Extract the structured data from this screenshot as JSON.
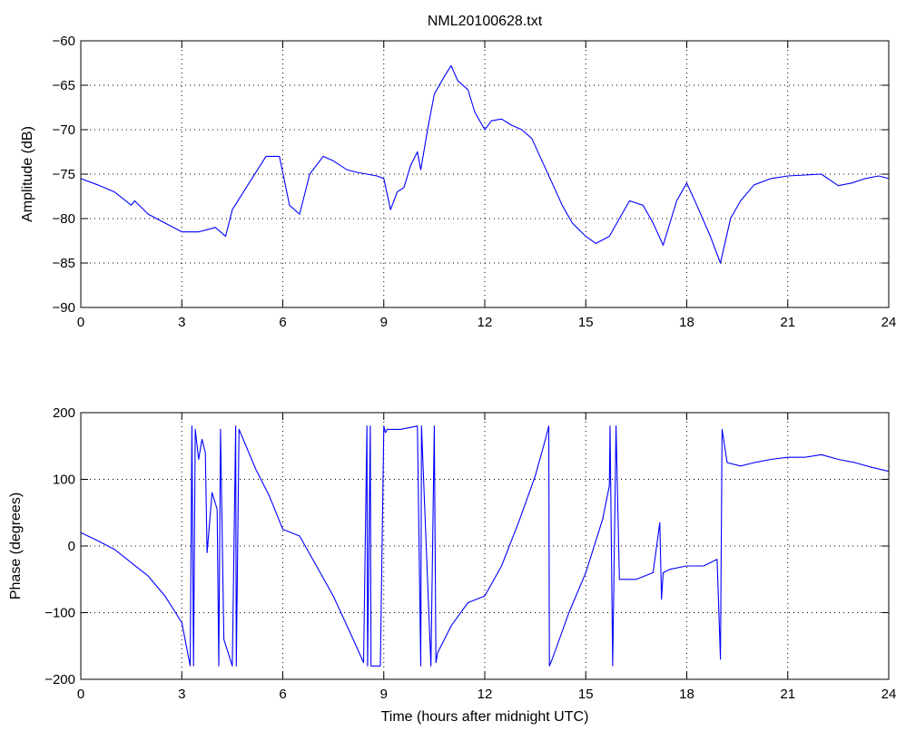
{
  "figure": {
    "title": "NML20100628.txt"
  },
  "chart_data": [
    {
      "type": "line",
      "title": "NML20100628.txt",
      "xlabel": "",
      "ylabel": "Amplitude (dB)",
      "xlim": [
        0,
        24
      ],
      "ylim": [
        -90,
        -60
      ],
      "xticks": [
        0,
        3,
        6,
        9,
        12,
        15,
        18,
        21,
        24
      ],
      "yticks": [
        -90,
        -85,
        -80,
        -75,
        -70,
        -65,
        -60
      ],
      "grid": true,
      "color": "#0000ff",
      "series": [
        {
          "x": [
            0,
            0.5,
            1.0,
            1.5,
            1.6,
            2.0,
            2.5,
            3.0,
            3.5,
            4.0,
            4.3,
            4.5,
            5.0,
            5.5,
            5.9,
            6.2,
            6.5,
            6.8,
            7.2,
            7.5,
            7.9,
            8.2,
            8.5,
            8.8,
            9.0,
            9.2,
            9.4,
            9.6,
            9.8,
            10.0,
            10.1,
            10.3,
            10.5,
            10.8,
            11.0,
            11.2,
            11.5,
            11.7,
            12.0,
            12.2,
            12.5,
            12.8,
            13.1,
            13.4,
            13.7,
            14.0,
            14.3,
            14.6,
            15.0,
            15.3,
            15.7,
            16.0,
            16.3,
            16.7,
            17.0,
            17.3,
            17.7,
            18.0,
            18.3,
            18.7,
            19.0,
            19.3,
            19.6,
            20.0,
            20.5,
            21.0,
            21.5,
            22.0,
            22.5,
            22.9,
            23.3,
            23.7,
            24.0
          ],
          "y": [
            -75.5,
            -76.2,
            -77.0,
            -78.5,
            -78.0,
            -79.5,
            -80.5,
            -81.5,
            -81.5,
            -81.0,
            -82.0,
            -79.0,
            -76.0,
            -73.0,
            -73.0,
            -78.5,
            -79.5,
            -75.0,
            -73.0,
            -73.5,
            -74.5,
            -74.8,
            -75.0,
            -75.2,
            -75.5,
            -79.0,
            -77.0,
            -76.5,
            -74.0,
            -72.5,
            -74.5,
            -70.0,
            -66.0,
            -64.0,
            -62.8,
            -64.5,
            -65.5,
            -68.0,
            -70.0,
            -69.0,
            -68.8,
            -69.5,
            -70.0,
            -71.0,
            -73.5,
            -76.0,
            -78.5,
            -80.5,
            -82.0,
            -82.8,
            -82.0,
            -80.0,
            -78.0,
            -78.5,
            -80.5,
            -83.0,
            -78.0,
            -76.0,
            -78.5,
            -82.0,
            -85.0,
            -80.0,
            -78.0,
            -76.2,
            -75.5,
            -75.2,
            -75.1,
            -75.0,
            -76.3,
            -76.0,
            -75.5,
            -75.2,
            -75.5
          ]
        }
      ]
    },
    {
      "type": "line",
      "title": "",
      "xlabel": "Time (hours after midnight UTC)",
      "ylabel": "Phase (degrees)",
      "xlim": [
        0,
        24
      ],
      "ylim": [
        -200,
        200
      ],
      "xticks": [
        0,
        3,
        6,
        9,
        12,
        15,
        18,
        21,
        24
      ],
      "yticks": [
        -200,
        -100,
        0,
        100,
        200
      ],
      "grid": true,
      "color": "#0000ff",
      "series": [
        {
          "x": [
            0,
            0.5,
            1.0,
            1.5,
            2.0,
            2.5,
            3.0,
            3.25,
            3.3,
            3.35,
            3.4,
            3.5,
            3.6,
            3.7,
            3.75,
            3.9,
            4.05,
            4.1,
            4.15,
            4.25,
            4.5,
            4.6,
            4.62,
            4.7,
            5.2,
            5.6,
            6.0,
            6.5,
            7.0,
            7.5,
            8.0,
            8.4,
            8.5,
            8.52,
            8.6,
            8.62,
            8.9,
            9.0,
            9.05,
            9.1,
            9.5,
            10.0,
            10.1,
            10.12,
            10.4,
            10.5,
            10.55,
            10.6,
            11.0,
            11.5,
            12.0,
            12.5,
            13.0,
            13.5,
            13.8,
            13.9,
            13.92,
            14.0,
            14.5,
            15.0,
            15.5,
            15.7,
            15.72,
            15.8,
            15.9,
            16.0,
            16.5,
            17.0,
            17.2,
            17.25,
            17.3,
            17.5,
            18.0,
            18.5,
            18.9,
            19.0,
            19.05,
            19.2,
            19.6,
            20.0,
            20.5,
            21.0,
            21.5,
            22.0,
            22.5,
            23.0,
            23.5,
            24.0
          ],
          "y": [
            20,
            8,
            -5,
            -25,
            -45,
            -75,
            -115,
            -180,
            180,
            -180,
            175,
            130,
            160,
            140,
            -10,
            80,
            55,
            -180,
            175,
            -140,
            -180,
            180,
            -180,
            175,
            115,
            75,
            25,
            15,
            -30,
            -75,
            -130,
            -175,
            180,
            -180,
            180,
            -180,
            -180,
            180,
            170,
            175,
            175,
            180,
            -180,
            180,
            -180,
            180,
            -175,
            -160,
            -120,
            -85,
            -75,
            -30,
            35,
            105,
            160,
            180,
            -180,
            -170,
            -100,
            -40,
            40,
            90,
            180,
            -180,
            180,
            -50,
            -50,
            -40,
            35,
            -80,
            -40,
            -35,
            -30,
            -30,
            -20,
            -170,
            175,
            125,
            120,
            125,
            130,
            133,
            133,
            137,
            130,
            125,
            118,
            112
          ]
        }
      ]
    }
  ]
}
